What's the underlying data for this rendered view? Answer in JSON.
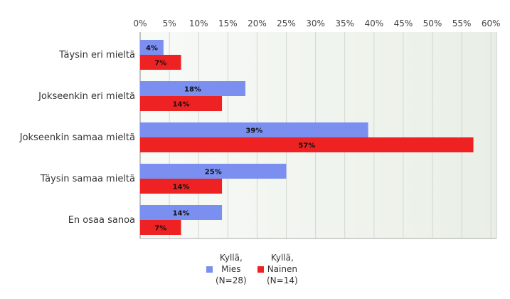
{
  "chart_data": {
    "type": "bar",
    "orientation": "horizontal",
    "categories": [
      "Täysin eri mieltä",
      "Jokseenkin eri mieltä",
      "Jokseenkin samaa mieltä",
      "Täysin samaa mieltä",
      "En osaa sanoa"
    ],
    "series": [
      {
        "name": "Kyllä,\nMies\n(N=28)",
        "color": "#7b8ff0",
        "values": [
          4,
          18,
          39,
          25,
          14
        ],
        "labels": [
          "4%",
          "18%",
          "39%",
          "25%",
          "14%"
        ]
      },
      {
        "name": "Kyllä,\nNainen\n(N=14)",
        "color": "#ee2222",
        "values": [
          7,
          14,
          57,
          14,
          7
        ],
        "labels": [
          "7%",
          "14%",
          "57%",
          "14%",
          "7%"
        ]
      }
    ],
    "xlim": [
      0,
      60
    ],
    "ticks": [
      "0%",
      "5%",
      "10%",
      "15%",
      "20%",
      "25%",
      "30%",
      "35%",
      "40%",
      "45%",
      "50%",
      "55%",
      "60%"
    ],
    "tick_values": [
      0,
      5,
      10,
      15,
      20,
      25,
      30,
      35,
      40,
      45,
      50,
      55,
      60
    ],
    "grid": true,
    "legend_position": "bottom",
    "xlabel": "",
    "ylabel": "",
    "title": ""
  }
}
